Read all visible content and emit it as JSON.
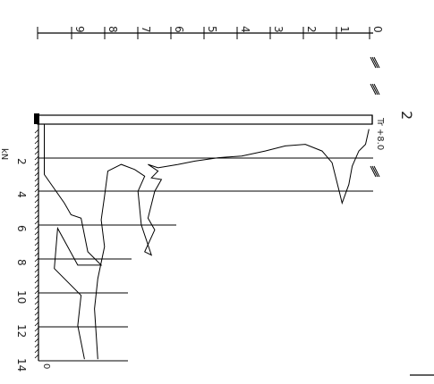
{
  "figure": {
    "panel_label": "2",
    "marker_label": "Tr +8.0",
    "tick_top_labels": [
      "0",
      "1",
      "2",
      "3",
      "4",
      "5",
      "6",
      "7",
      "8",
      "9"
    ],
    "tick_left_labels": [
      "2",
      "4",
      "6",
      "8",
      "10",
      "12",
      "14"
    ],
    "left_unit_label": "kN",
    "depth_marker": "0"
  },
  "chart_data": {
    "type": "line",
    "title": "",
    "xlabel": "",
    "ylabel": "kN",
    "x_ticks": [
      0,
      1,
      2,
      3,
      4,
      5,
      6,
      7,
      8,
      9
    ],
    "y_ticks": [
      2,
      4,
      6,
      8,
      10,
      12,
      14
    ],
    "orientation": "rotated",
    "series": [
      {
        "values": [
          [
            0.1,
            0.3
          ],
          [
            0.2,
            1.2
          ],
          [
            0.4,
            1.6
          ],
          [
            0.6,
            2.5
          ],
          [
            0.7,
            3.6
          ],
          [
            0.9,
            4.7
          ],
          [
            1.0,
            3.9
          ],
          [
            1.2,
            2.3
          ],
          [
            1.5,
            1.6
          ],
          [
            2.0,
            1.2
          ],
          [
            2.6,
            1.3
          ],
          [
            3.2,
            1.6
          ],
          [
            3.9,
            1.9
          ],
          [
            4.6,
            2.0
          ],
          [
            5.3,
            2.2
          ],
          [
            5.8,
            2.4
          ],
          [
            6.1,
            2.5
          ],
          [
            6.4,
            2.6
          ],
          [
            6.7,
            2.4
          ],
          [
            6.4,
            2.8
          ],
          [
            6.6,
            3.2
          ],
          [
            6.3,
            3.3
          ],
          [
            6.5,
            4.0
          ],
          [
            6.7,
            5.6
          ],
          [
            6.5,
            6.3
          ],
          [
            6.8,
            7.6
          ],
          [
            6.6,
            7.8
          ],
          [
            6.9,
            6.0
          ],
          [
            7.0,
            4.0
          ],
          [
            6.8,
            3.1
          ],
          [
            7.1,
            2.7
          ],
          [
            7.5,
            2.4
          ],
          [
            7.9,
            2.8
          ],
          [
            8.0,
            4.3
          ],
          [
            8.1,
            5.7
          ],
          [
            8.0,
            7.3
          ],
          [
            8.2,
            9.2
          ],
          [
            8.3,
            11.0
          ],
          [
            8.2,
            14.0
          ]
        ]
      },
      {
        "values": [
          [
            9.8,
            0.0
          ],
          [
            9.8,
            3.0
          ],
          [
            9.2,
            4.7
          ],
          [
            9.0,
            5.4
          ],
          [
            8.7,
            5.6
          ],
          [
            8.5,
            7.6
          ],
          [
            8.1,
            8.4
          ],
          [
            8.8,
            8.4
          ],
          [
            9.4,
            6.2
          ],
          [
            9.5,
            8.6
          ],
          [
            8.7,
            10.2
          ],
          [
            8.8,
            12.0
          ],
          [
            8.6,
            14.0
          ]
        ]
      }
    ]
  }
}
